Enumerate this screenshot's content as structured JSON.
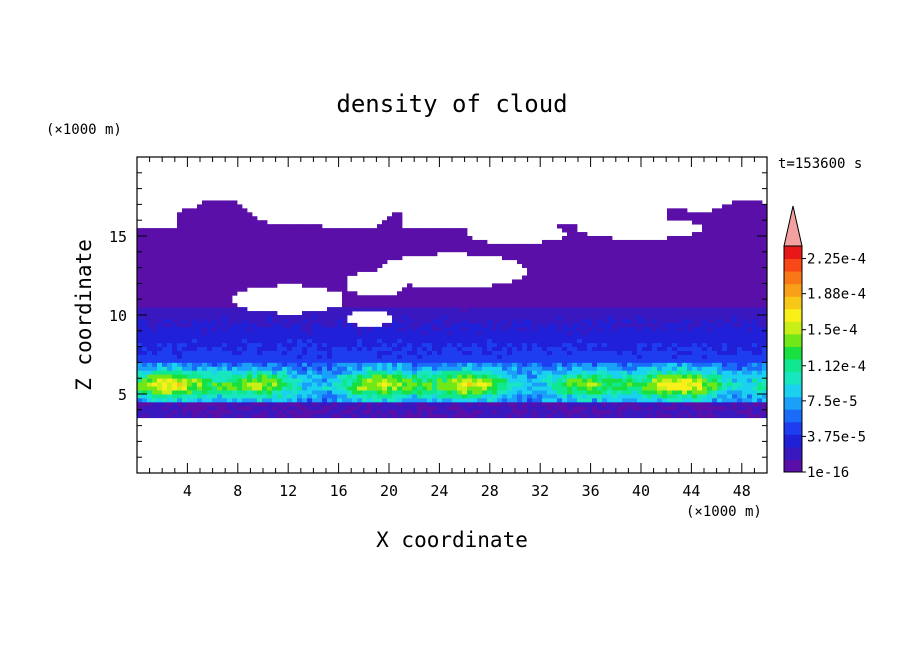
{
  "chart_data": {
    "type": "heatmap",
    "title": "density of cloud",
    "xlabel": "X coordinate",
    "ylabel": "Z coordinate",
    "x_unit": "(×1000 m)",
    "y_unit": "(×1000 m)",
    "time_label": "t=153600 s",
    "xlim": [
      0,
      50
    ],
    "ylim": [
      0,
      20
    ],
    "x_ticks": [
      4,
      8,
      12,
      16,
      20,
      24,
      28,
      32,
      36,
      40,
      44,
      48
    ],
    "y_ticks": [
      5,
      10,
      15
    ],
    "colorbar": {
      "labels": [
        "1e-16",
        "3.75e-5",
        "7.5e-5",
        "1.12e-4",
        "1.5e-4",
        "1.88e-4",
        "2.25e-4"
      ],
      "levels": [
        0,
        3.75e-05,
        7.5e-05,
        0.000112,
        0.00015,
        0.000188,
        0.000225
      ],
      "colors": [
        "#5a0fa8",
        "#3a18c0",
        "#2020d8",
        "#1e3cf0",
        "#1a6cf8",
        "#1aa0f8",
        "#1ad2f0",
        "#18e6c0",
        "#10e890",
        "#18e040",
        "#70e818",
        "#c8f018",
        "#f8f018",
        "#f8c818",
        "#f8a018",
        "#f87818",
        "#f84818",
        "#e81818"
      ],
      "extend_color": "#f2a0a0"
    },
    "cloud_layers": [
      {
        "z_range": [
          3.5,
          4.5
        ],
        "value_range": [
          0,
          3e-05
        ]
      },
      {
        "z_range": [
          4.5,
          7.0
        ],
        "value_range": [
          5e-05,
          0.00018
        ]
      },
      {
        "z_range": [
          7.0,
          10.5
        ],
        "value_range": [
          1e-05,
          5e-05
        ]
      },
      {
        "z_range": [
          10.5,
          16.5
        ],
        "value_range": [
          0,
          1e-05
        ]
      }
    ]
  }
}
